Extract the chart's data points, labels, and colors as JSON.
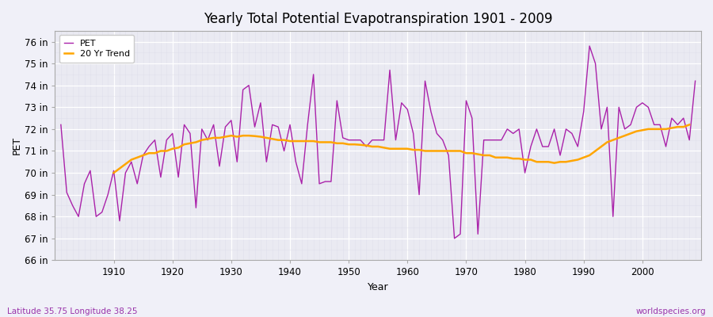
{
  "title": "Yearly Total Potential Evapotranspiration 1901 - 2009",
  "xlabel": "Year",
  "ylabel": "PET",
  "subtitle_left": "Latitude 35.75 Longitude 38.25",
  "subtitle_right": "worldspecies.org",
  "years": [
    1901,
    1902,
    1903,
    1904,
    1905,
    1906,
    1907,
    1908,
    1909,
    1910,
    1911,
    1912,
    1913,
    1914,
    1915,
    1916,
    1917,
    1918,
    1919,
    1920,
    1921,
    1922,
    1923,
    1924,
    1925,
    1926,
    1927,
    1928,
    1929,
    1930,
    1931,
    1932,
    1933,
    1934,
    1935,
    1936,
    1937,
    1938,
    1939,
    1940,
    1941,
    1942,
    1943,
    1944,
    1945,
    1946,
    1947,
    1948,
    1949,
    1950,
    1951,
    1952,
    1953,
    1954,
    1955,
    1956,
    1957,
    1958,
    1959,
    1960,
    1961,
    1962,
    1963,
    1964,
    1965,
    1966,
    1967,
    1968,
    1969,
    1970,
    1971,
    1972,
    1973,
    1974,
    1975,
    1976,
    1977,
    1978,
    1979,
    1980,
    1981,
    1982,
    1983,
    1984,
    1985,
    1986,
    1987,
    1988,
    1989,
    1990,
    1991,
    1992,
    1993,
    1994,
    1995,
    1996,
    1997,
    1998,
    1999,
    2000,
    2001,
    2002,
    2003,
    2004,
    2005,
    2006,
    2007,
    2008,
    2009
  ],
  "pet": [
    72.2,
    69.1,
    68.5,
    68.0,
    69.5,
    70.1,
    68.0,
    68.2,
    69.0,
    70.1,
    67.8,
    70.0,
    70.5,
    69.5,
    70.8,
    71.2,
    71.5,
    69.8,
    71.5,
    71.8,
    69.8,
    72.2,
    71.8,
    68.4,
    72.0,
    71.5,
    72.2,
    70.3,
    72.1,
    72.4,
    70.5,
    73.8,
    74.0,
    72.1,
    73.2,
    70.5,
    72.2,
    72.1,
    71.0,
    72.2,
    70.5,
    69.5,
    72.2,
    74.5,
    69.5,
    69.6,
    69.6,
    73.3,
    71.6,
    71.5,
    71.5,
    71.5,
    71.2,
    71.5,
    71.5,
    71.5,
    74.7,
    71.5,
    73.2,
    72.9,
    71.8,
    69.0,
    74.2,
    72.8,
    71.8,
    71.5,
    70.8,
    67.0,
    67.2,
    73.3,
    72.5,
    67.2,
    71.5,
    71.5,
    71.5,
    71.5,
    72.0,
    71.8,
    72.0,
    70.0,
    71.2,
    72.0,
    71.2,
    71.2,
    72.0,
    70.8,
    72.0,
    71.8,
    71.2,
    72.8,
    75.8,
    75.0,
    72.0,
    73.0,
    68.0,
    73.0,
    72.0,
    72.2,
    73.0,
    73.2,
    73.0,
    72.2,
    72.2,
    71.2,
    72.5,
    72.2,
    72.5,
    71.5,
    74.2
  ],
  "trend": [
    null,
    null,
    null,
    null,
    null,
    null,
    null,
    null,
    null,
    70.0,
    70.2,
    70.4,
    70.6,
    70.7,
    70.8,
    70.9,
    70.9,
    71.0,
    71.0,
    71.1,
    71.15,
    71.3,
    71.35,
    71.4,
    71.5,
    71.55,
    71.6,
    71.6,
    71.65,
    71.7,
    71.65,
    71.7,
    71.7,
    71.68,
    71.65,
    71.6,
    71.55,
    71.5,
    71.5,
    71.45,
    71.45,
    71.45,
    71.45,
    71.45,
    71.4,
    71.4,
    71.4,
    71.35,
    71.35,
    71.3,
    71.3,
    71.28,
    71.25,
    71.2,
    71.2,
    71.15,
    71.1,
    71.1,
    71.1,
    71.1,
    71.05,
    71.05,
    71.0,
    71.0,
    71.0,
    71.0,
    71.0,
    71.0,
    71.0,
    70.9,
    70.9,
    70.85,
    70.8,
    70.8,
    70.7,
    70.7,
    70.7,
    70.65,
    70.65,
    70.6,
    70.6,
    70.5,
    70.5,
    70.5,
    70.45,
    70.5,
    70.5,
    70.55,
    70.6,
    70.7,
    70.8,
    71.0,
    71.2,
    71.4,
    71.5,
    71.6,
    71.7,
    71.8,
    71.9,
    71.95,
    72.0,
    72.0,
    72.0,
    72.0,
    72.05,
    72.1,
    72.1,
    72.2
  ],
  "pet_color": "#AA22AA",
  "trend_color": "#FFA500",
  "fig_bg_color": "#F0F0F8",
  "plot_bg_color": "#EAEAF2",
  "ylim": [
    66,
    76.5
  ],
  "yticks": [
    66,
    67,
    68,
    69,
    70,
    71,
    72,
    73,
    74,
    75,
    76
  ],
  "xlim": [
    1900,
    2010
  ],
  "xticks": [
    1910,
    1920,
    1930,
    1940,
    1950,
    1960,
    1970,
    1980,
    1990,
    2000
  ],
  "grid_color": "#FFFFFF",
  "grid_minor_color": "#DCDCE8"
}
